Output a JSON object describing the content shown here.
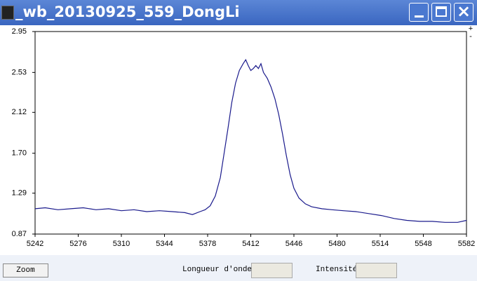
{
  "window": {
    "title": "_wb_20130925_559_DongLi"
  },
  "chart_data": {
    "type": "line",
    "color": "#1a1a8c",
    "x": [
      5242,
      5250,
      5260,
      5270,
      5280,
      5290,
      5300,
      5310,
      5320,
      5330,
      5340,
      5350,
      5360,
      5366,
      5372,
      5376,
      5380,
      5384,
      5388,
      5391,
      5394,
      5397,
      5400,
      5403,
      5406,
      5408,
      5410,
      5412,
      5414,
      5416,
      5418,
      5420,
      5422,
      5425,
      5428,
      5431,
      5434,
      5437,
      5440,
      5443,
      5446,
      5450,
      5455,
      5460,
      5468,
      5476,
      5485,
      5495,
      5505,
      5515,
      5525,
      5535,
      5545,
      5555,
      5565,
      5575,
      5582
    ],
    "values": [
      1.13,
      1.14,
      1.12,
      1.13,
      1.14,
      1.12,
      1.13,
      1.11,
      1.12,
      1.1,
      1.11,
      1.1,
      1.09,
      1.07,
      1.1,
      1.12,
      1.16,
      1.26,
      1.45,
      1.7,
      1.95,
      2.22,
      2.42,
      2.55,
      2.62,
      2.66,
      2.6,
      2.55,
      2.57,
      2.6,
      2.57,
      2.62,
      2.53,
      2.47,
      2.38,
      2.26,
      2.1,
      1.9,
      1.68,
      1.48,
      1.34,
      1.24,
      1.18,
      1.15,
      1.13,
      1.12,
      1.11,
      1.1,
      1.08,
      1.06,
      1.03,
      1.01,
      1.0,
      1.0,
      0.99,
      0.99,
      1.01
    ],
    "xlim": [
      5242,
      5582
    ],
    "xticks": [
      5242,
      5276,
      5310,
      5344,
      5378,
      5412,
      5446,
      5480,
      5514,
      5548,
      5582
    ],
    "ylim": [
      0.87,
      2.95
    ],
    "yticks": [
      0.87,
      1.29,
      {
        "value": 1.7,
        "label": "1.70"
      },
      2.12,
      2.53,
      2.95
    ]
  },
  "controls": {
    "plus": "+",
    "minus": "-",
    "zoom": "Zoom",
    "wavelength_label": "Longueur d'onde",
    "intensity_label": "Intensité"
  }
}
